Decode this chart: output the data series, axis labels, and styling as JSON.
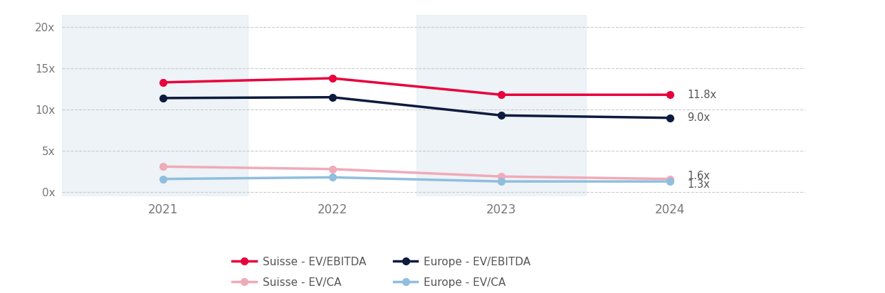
{
  "years": [
    2021,
    2022,
    2023,
    2024
  ],
  "suisse_ebitda": [
    13.3,
    13.8,
    11.8,
    11.8
  ],
  "suisse_ca": [
    3.1,
    2.8,
    1.9,
    1.6
  ],
  "europe_ebitda": [
    11.4,
    11.5,
    9.3,
    9.0
  ],
  "europe_ca": [
    1.6,
    1.8,
    1.3,
    1.3
  ],
  "color_suisse_ebitda": "#e8003d",
  "color_suisse_ca": "#f0aab8",
  "color_europe_ebitda": "#0d1b3e",
  "color_europe_ca": "#90bedd",
  "label_suisse_ebitda": "Suisse - EV/EBITDA",
  "label_suisse_ca": "Suisse - EV/CA",
  "label_europe_ebitda": "Europe - EV/EBITDA",
  "label_europe_ca": "Europe - EV/CA",
  "end_label_suisse_ebitda": "11.8x",
  "end_label_suisse_ca": "1.6x",
  "end_label_europe_ebitda": "9.0x",
  "end_label_europe_ca": "1.3x",
  "yticks": [
    0,
    5,
    10,
    15,
    20
  ],
  "ytick_labels": [
    "0x",
    "5x",
    "10x",
    "15x",
    "20x"
  ],
  "ylim": [
    -0.5,
    21.5
  ],
  "xlim": [
    2020.4,
    2024.8
  ],
  "bg_band_color": "#dce9f0",
  "bg_band_alpha": 0.5,
  "linewidth": 2.5,
  "markersize": 7,
  "band_ranges": [
    [
      2020.4,
      2021.5
    ],
    [
      2022.5,
      2023.5
    ]
  ]
}
